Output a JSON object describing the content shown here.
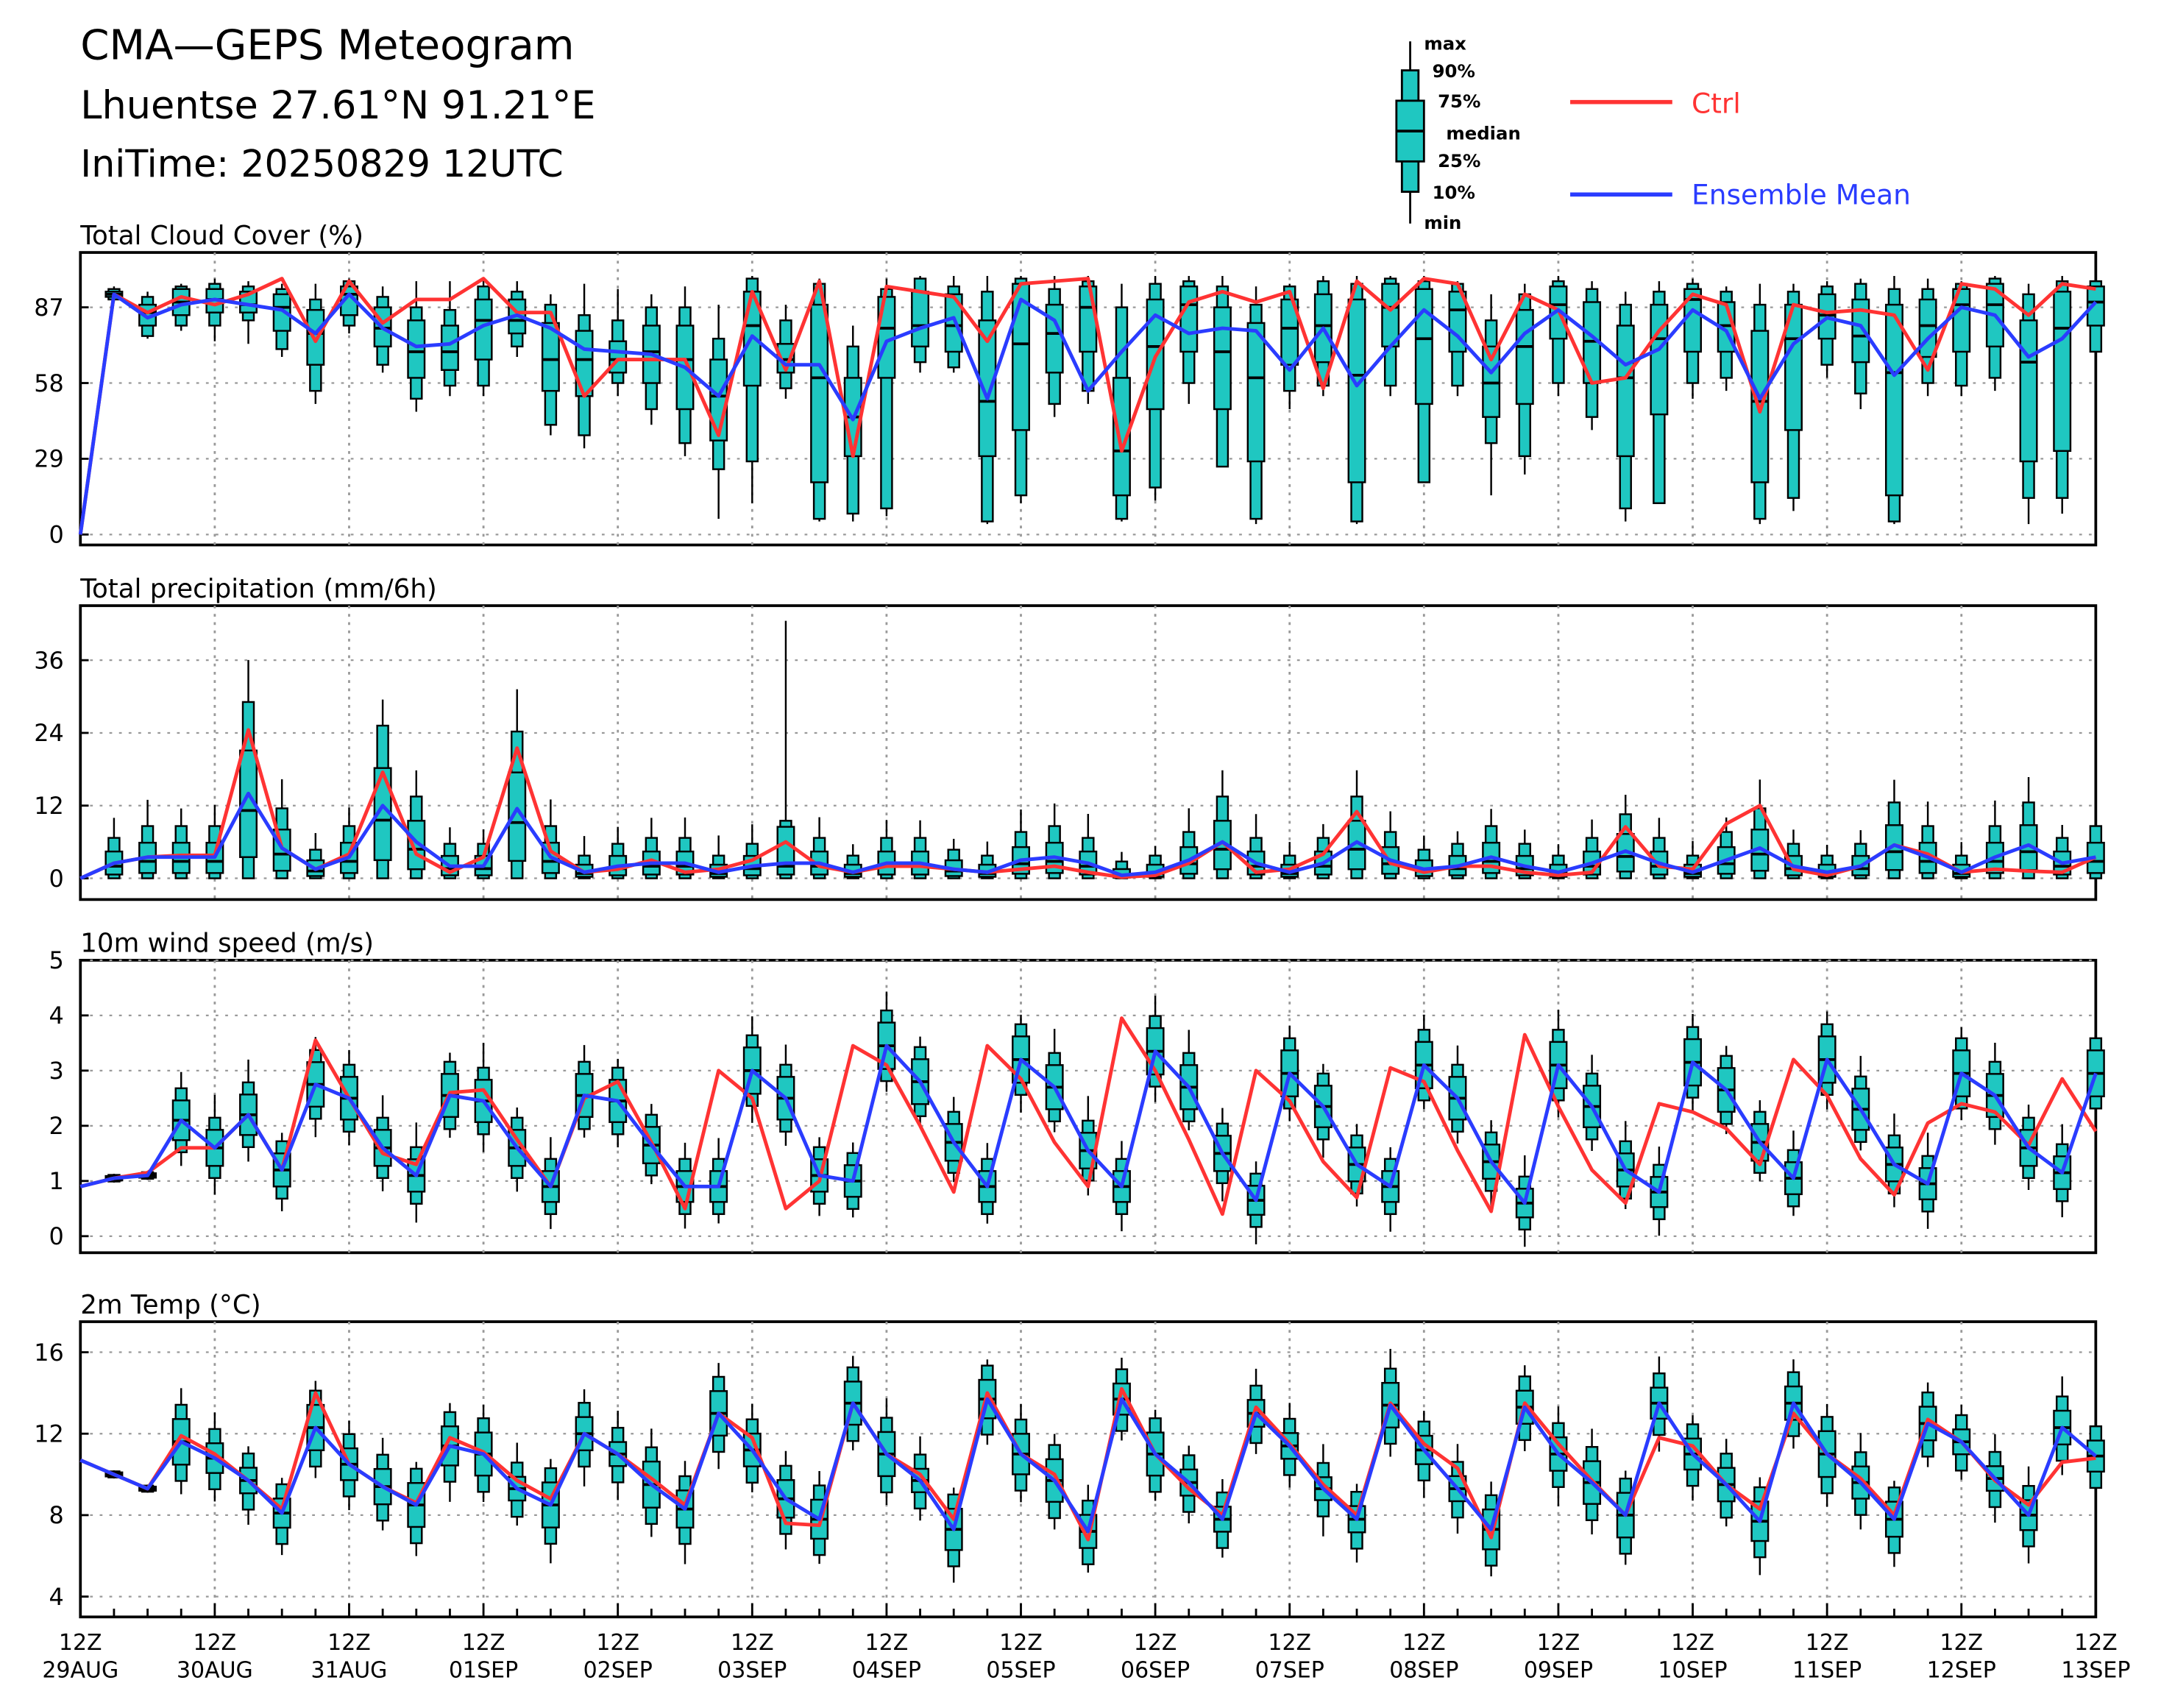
{
  "header": {
    "title": "CMA—GEPS Meteogram",
    "location": "Lhuentse 27.61°N 91.21°E",
    "init_time": "IniTime: 20250829 12UTC"
  },
  "legend": {
    "box_labels": [
      "max",
      "90%",
      "75%",
      "median",
      "25%",
      "10%",
      "min"
    ],
    "ctrl_label": "Ctrl",
    "mean_label": "Ensemble Mean",
    "ctrl_color": "#ff3333",
    "mean_color": "#2a3cff",
    "box_color": "#1fc7c1"
  },
  "chart_data": [
    {
      "type": "boxplot",
      "title": "Total Cloud Cover (%)",
      "ylim": [
        -4,
        108
      ],
      "yticks": [
        0,
        29,
        58,
        87
      ],
      "ctrl": [
        0,
        92,
        85,
        91,
        88,
        92,
        98,
        74,
        97,
        81,
        90,
        90,
        98,
        85,
        85,
        53,
        67,
        67,
        67,
        38,
        93,
        63,
        97,
        30,
        95,
        93,
        91,
        74,
        96,
        97,
        98,
        32,
        68,
        89,
        93,
        89,
        93,
        56,
        97,
        86,
        98,
        96,
        67,
        92,
        86,
        58,
        60,
        78,
        92,
        88,
        47,
        88,
        85,
        86,
        84,
        63,
        96,
        94,
        84,
        96,
        94
      ],
      "mean": [
        0,
        92,
        83,
        88,
        90,
        88,
        86,
        77,
        92,
        79,
        72,
        73,
        80,
        84,
        79,
        71,
        70,
        69,
        64,
        53,
        76,
        65,
        65,
        44,
        74,
        79,
        83,
        52,
        90,
        82,
        55,
        70,
        84,
        77,
        79,
        78,
        63,
        79,
        57,
        72,
        86,
        76,
        62,
        77,
        86,
        76,
        65,
        71,
        86,
        78,
        52,
        73,
        83,
        80,
        61,
        75,
        87,
        84,
        68,
        75,
        89
      ],
      "boxes": [
        [
          0,
          0,
          0,
          0,
          0,
          0,
          0
        ],
        [
          89,
          90,
          91,
          92,
          93,
          94,
          95
        ],
        [
          75,
          76,
          80,
          85,
          88,
          91,
          93
        ],
        [
          78,
          80,
          84,
          89,
          94,
          95,
          96
        ],
        [
          74,
          80,
          85,
          90,
          94,
          96,
          98
        ],
        [
          73,
          82,
          85,
          88,
          93,
          95,
          97
        ],
        [
          68,
          71,
          78,
          87,
          92,
          94,
          96
        ],
        [
          50,
          55,
          65,
          77,
          86,
          90,
          96
        ],
        [
          77,
          80,
          84,
          92,
          95,
          97,
          98
        ],
        [
          62,
          65,
          72,
          79,
          87,
          91,
          95
        ],
        [
          47,
          52,
          60,
          70,
          82,
          87,
          97
        ],
        [
          53,
          57,
          63,
          70,
          80,
          86,
          97
        ],
        [
          53,
          57,
          67,
          82,
          90,
          95,
          98
        ],
        [
          68,
          72,
          77,
          82,
          90,
          93,
          97
        ],
        [
          38,
          42,
          55,
          67,
          81,
          88,
          92
        ],
        [
          33,
          38,
          53,
          67,
          78,
          84,
          96
        ],
        [
          53,
          58,
          62,
          67,
          74,
          82,
          94
        ],
        [
          42,
          48,
          58,
          70,
          80,
          87,
          92
        ],
        [
          30,
          35,
          48,
          67,
          80,
          87,
          95
        ],
        [
          6,
          25,
          36,
          53,
          67,
          75,
          88
        ],
        [
          12,
          28,
          57,
          80,
          93,
          98,
          99
        ],
        [
          52,
          56,
          62,
          67,
          73,
          82,
          88
        ],
        [
          5,
          6,
          20,
          60,
          88,
          96,
          98
        ],
        [
          5,
          8,
          30,
          45,
          60,
          72,
          80
        ],
        [
          7,
          10,
          60,
          79,
          91,
          94,
          98
        ],
        [
          62,
          66,
          72,
          80,
          93,
          98,
          99
        ],
        [
          62,
          64,
          70,
          80,
          92,
          95,
          99
        ],
        [
          4,
          5,
          30,
          51,
          82,
          93,
          99
        ],
        [
          12,
          15,
          40,
          73,
          96,
          98,
          99
        ],
        [
          45,
          50,
          62,
          77,
          88,
          94,
          99
        ],
        [
          50,
          55,
          70,
          87,
          95,
          97,
          99
        ],
        [
          5,
          6,
          15,
          32,
          60,
          87,
          96
        ],
        [
          13,
          18,
          48,
          72,
          90,
          96,
          99
        ],
        [
          50,
          58,
          70,
          88,
          95,
          97,
          99
        ],
        [
          28,
          26,
          48,
          70,
          87,
          95,
          99
        ],
        [
          4,
          6,
          28,
          60,
          81,
          88,
          95
        ],
        [
          48,
          55,
          65,
          79,
          90,
          95,
          96
        ],
        [
          53,
          57,
          66,
          80,
          92,
          97,
          99
        ],
        [
          4,
          5,
          20,
          61,
          90,
          96,
          99
        ],
        [
          53,
          57,
          72,
          87,
          96,
          98,
          99
        ],
        [
          20,
          20,
          50,
          75,
          94,
          97,
          99
        ],
        [
          53,
          57,
          70,
          86,
          93,
          96,
          97
        ],
        [
          15,
          35,
          45,
          58,
          72,
          82,
          92
        ],
        [
          23,
          30,
          50,
          72,
          86,
          92,
          96
        ],
        [
          53,
          58,
          75,
          88,
          95,
          97,
          99
        ],
        [
          40,
          45,
          58,
          74,
          89,
          94,
          97
        ],
        [
          5,
          10,
          30,
          60,
          80,
          88,
          93
        ],
        [
          12,
          12,
          46,
          75,
          88,
          93,
          97
        ],
        [
          52,
          58,
          70,
          90,
          94,
          96,
          98
        ],
        [
          55,
          60,
          70,
          80,
          89,
          93,
          95
        ],
        [
          4,
          6,
          20,
          51,
          78,
          88,
          96
        ],
        [
          9,
          14,
          40,
          75,
          88,
          93,
          96
        ],
        [
          60,
          65,
          75,
          84,
          92,
          95,
          97
        ],
        [
          48,
          54,
          66,
          76,
          90,
          96,
          98
        ],
        [
          4,
          5,
          15,
          62,
          88,
          94,
          99
        ],
        [
          53,
          58,
          68,
          80,
          90,
          94,
          98
        ],
        [
          53,
          57,
          70,
          88,
          94,
          96,
          97
        ],
        [
          55,
          60,
          72,
          88,
          96,
          98,
          99
        ],
        [
          4,
          14,
          28,
          66,
          82,
          92,
          96
        ],
        [
          8,
          14,
          32,
          79,
          93,
          97,
          99
        ],
        [
          65,
          70,
          80,
          89,
          95,
          97,
          99
        ]
      ]
    },
    {
      "type": "boxplot",
      "title": "Total precipitation (mm/6h)",
      "ylim": [
        -3.5,
        45
      ],
      "yticks": [
        0,
        12,
        24,
        36
      ],
      "ctrl": [
        0,
        2.5,
        3.5,
        3.8,
        3.8,
        24.5,
        5,
        1.5,
        4,
        17.5,
        4,
        1,
        3.5,
        21.5,
        4.5,
        1,
        1.5,
        3,
        1,
        1.5,
        3,
        6,
        2,
        1,
        2,
        2,
        1.5,
        1,
        1.5,
        2,
        1,
        0.2,
        0.5,
        2.5,
        6,
        1,
        1.5,
        4,
        11,
        2.5,
        1,
        2,
        2,
        1,
        0.5,
        1,
        8.5,
        2,
        1.5,
        9,
        12,
        1.5,
        0.5,
        2,
        5.5,
        4,
        1,
        1.5,
        1.2,
        1,
        3.5
      ],
      "mean": [
        0,
        2.5,
        3.5,
        3.5,
        3.5,
        14,
        5,
        1.5,
        3.5,
        12,
        6,
        2,
        2,
        11.5,
        3.5,
        1,
        2,
        2.5,
        2.5,
        1,
        2,
        2.5,
        2.5,
        1,
        2.5,
        2.5,
        1.5,
        1,
        3,
        3.5,
        2.5,
        0.5,
        1,
        3,
        6,
        2.5,
        1,
        2.5,
        6,
        3,
        1.5,
        2,
        3.5,
        2,
        1,
        2.5,
        4.5,
        2.5,
        1,
        3,
        5,
        2,
        1,
        2,
        5.5,
        3.5,
        1,
        3.5,
        5.5,
        2.5,
        3.5
      ]
    },
    {
      "type": "boxplot",
      "title": "10m wind speed (m/s)",
      "ylim": [
        -0.3,
        5
      ],
      "yticks": [
        0,
        1,
        2,
        3,
        4,
        5
      ],
      "ctrl": [
        0.9,
        1.05,
        1.15,
        1.6,
        1.6,
        2.2,
        1.2,
        3.55,
        2.5,
        1.5,
        1.3,
        2.6,
        2.65,
        1.75,
        0.9,
        2.5,
        2.8,
        1.7,
        0.5,
        3.0,
        2.5,
        0.5,
        1.0,
        3.45,
        3.1,
        2.0,
        0.8,
        3.45,
        2.85,
        1.7,
        0.9,
        3.95,
        3.0,
        1.75,
        0.4,
        3.0,
        2.45,
        1.35,
        0.7,
        3.05,
        2.8,
        1.55,
        0.45,
        3.65,
        2.35,
        1.2,
        0.6,
        2.4,
        2.25,
        1.95,
        1.3,
        3.2,
        2.55,
        1.4,
        0.75,
        2.05,
        2.4,
        2.25,
        1.65,
        2.85,
        1.9
      ],
      "mean": [
        0.9,
        1.05,
        1.1,
        2.1,
        1.6,
        2.2,
        1.2,
        2.75,
        2.5,
        1.6,
        1.1,
        2.55,
        2.45,
        1.6,
        0.9,
        2.55,
        2.45,
        1.65,
        0.9,
        0.9,
        3.0,
        2.5,
        1.1,
        1.0,
        3.45,
        2.8,
        1.7,
        0.9,
        3.2,
        2.7,
        1.55,
        0.9,
        3.35,
        2.7,
        1.5,
        0.65,
        2.95,
        2.35,
        1.3,
        0.9,
        3.1,
        2.5,
        1.35,
        0.6,
        3.1,
        2.35,
        1.2,
        0.8,
        3.15,
        2.65,
        1.7,
        1.05,
        3.2,
        2.3,
        1.3,
        0.95,
        2.95,
        2.55,
        1.6,
        1.15,
        2.95
      ]
    },
    {
      "type": "boxplot",
      "title": "2m Temp (°C)",
      "ylim": [
        3,
        17.5
      ],
      "yticks": [
        4,
        8,
        12,
        16
      ],
      "ctrl": [
        10.7,
        10.0,
        9.3,
        11.9,
        11.0,
        9.7,
        8.3,
        14.0,
        10.5,
        9.4,
        8.6,
        11.8,
        11.1,
        9.7,
        8.8,
        12.0,
        11.0,
        9.8,
        8.5,
        13.0,
        11.8,
        7.6,
        7.5,
        13.5,
        11.0,
        10.0,
        7.8,
        14.0,
        11.0,
        10.0,
        6.8,
        14.2,
        11.0,
        9.3,
        8.0,
        13.3,
        11.5,
        9.5,
        8.0,
        13.5,
        11.5,
        10.3,
        6.9,
        13.5,
        11.5,
        9.7,
        8.0,
        11.8,
        11.4,
        9.5,
        8.3,
        13.0,
        11.0,
        9.8,
        8.0,
        12.7,
        11.6,
        9.7,
        8.5,
        10.6,
        10.8
      ],
      "mean": [
        10.7,
        10.0,
        9.3,
        11.6,
        10.8,
        9.7,
        8.1,
        12.3,
        10.5,
        9.4,
        8.5,
        11.4,
        11.0,
        9.3,
        8.5,
        12.0,
        11.0,
        9.5,
        8.3,
        13.0,
        11.2,
        8.8,
        7.8,
        13.5,
        11.0,
        9.7,
        7.3,
        13.7,
        11.0,
        9.7,
        7.2,
        13.7,
        11.0,
        9.6,
        7.8,
        13.0,
        11.4,
        9.3,
        7.8,
        13.4,
        11.2,
        9.3,
        7.3,
        13.3,
        11.0,
        9.6,
        8.0,
        13.5,
        11.0,
        9.5,
        7.7,
        13.5,
        11.0,
        9.6,
        7.8,
        12.5,
        11.6,
        9.8,
        8.0,
        12.3,
        10.9
      ]
    }
  ],
  "x_axis": {
    "tick_labels": [
      [
        "12Z",
        "29AUG"
      ],
      [
        "12Z",
        "30AUG"
      ],
      [
        "12Z",
        "31AUG"
      ],
      [
        "12Z",
        "01SEP"
      ],
      [
        "12Z",
        "02SEP"
      ],
      [
        "12Z",
        "03SEP"
      ],
      [
        "12Z",
        "04SEP"
      ],
      [
        "12Z",
        "05SEP"
      ],
      [
        "12Z",
        "06SEP"
      ],
      [
        "12Z",
        "07SEP"
      ],
      [
        "12Z",
        "08SEP"
      ],
      [
        "12Z",
        "09SEP"
      ],
      [
        "12Z",
        "10SEP"
      ],
      [
        "12Z",
        "11SEP"
      ],
      [
        "12Z",
        "12SEP"
      ],
      [
        "12Z",
        "13SEP"
      ]
    ]
  }
}
